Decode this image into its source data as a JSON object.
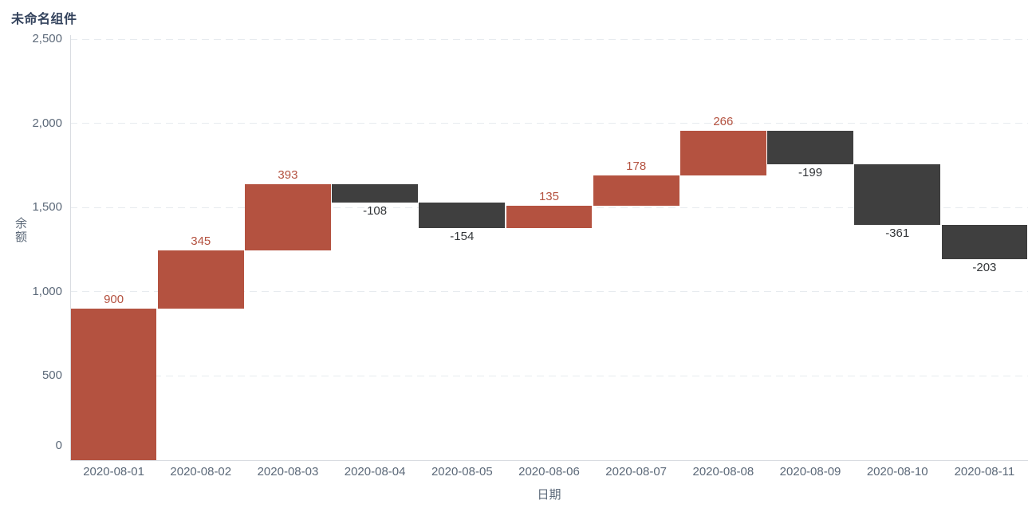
{
  "chart_data": {
    "type": "bar",
    "subtype": "waterfall",
    "title": "未命名组件",
    "xlabel": "日期",
    "ylabel": "余额",
    "categories": [
      "2020-08-01",
      "2020-08-02",
      "2020-08-03",
      "2020-08-04",
      "2020-08-05",
      "2020-08-06",
      "2020-08-07",
      "2020-08-08",
      "2020-08-09",
      "2020-08-10",
      "2020-08-11"
    ],
    "values": [
      900,
      345,
      393,
      -108,
      -154,
      135,
      178,
      266,
      -199,
      -361,
      -203
    ],
    "data_labels": [
      "900",
      "345",
      "393",
      "-108",
      "-154",
      "135",
      "178",
      "266",
      "-199",
      "-361",
      "-203"
    ],
    "running_total_start": [
      0,
      900,
      1245,
      1638,
      1530,
      1376,
      1511,
      1689,
      1955,
      1756,
      1395
    ],
    "running_total_end": [
      900,
      1245,
      1638,
      1530,
      1376,
      1511,
      1689,
      1955,
      1756,
      1395,
      1192
    ],
    "y_ticks": [
      "0",
      "500",
      "1,000",
      "1,500",
      "2,000",
      "2,500"
    ],
    "y_tick_values": [
      0,
      500,
      1000,
      1500,
      2000,
      2500
    ],
    "ylim": [
      0,
      2500
    ],
    "grid": true,
    "grid_style": "dashed",
    "legend": false,
    "colors": {
      "positive_bar": "#b45240",
      "negative_bar": "#3f3f3f",
      "positive_label": "#b45240",
      "negative_label": "#333639",
      "axis_line": "#d9dce1",
      "grid_line": "#e7ebef",
      "tick_label": "#5c6979",
      "title": "#33425c"
    }
  }
}
